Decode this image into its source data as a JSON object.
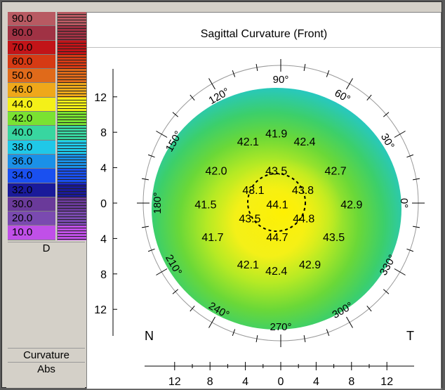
{
  "title": "Sagittal Curvature (Front)",
  "legend": {
    "scale": [
      {
        "label": "90.0",
        "color": "#b85a62"
      },
      {
        "label": "80.0",
        "color": "#a03244"
      },
      {
        "label": "70.0",
        "color": "#c21418"
      },
      {
        "label": "60.0",
        "color": "#d63a14"
      },
      {
        "label": "50.0",
        "color": "#e06a1a"
      },
      {
        "label": "46.0",
        "color": "#efa81a"
      },
      {
        "label": "44.0",
        "color": "#f4f018"
      },
      {
        "label": "42.0",
        "color": "#7ae232"
      },
      {
        "label": "40.0",
        "color": "#38d6a0"
      },
      {
        "label": "38.0",
        "color": "#20c8e8"
      },
      {
        "label": "36.0",
        "color": "#1a90e8"
      },
      {
        "label": "34.0",
        "color": "#1a50f0"
      },
      {
        "label": "32.0",
        "color": "#1a1a9a"
      },
      {
        "label": "30.0",
        "color": "#6a3a9a"
      },
      {
        "label": "20.0",
        "color": "#7a4ab0"
      },
      {
        "label": "10.0",
        "color": "#c050e8"
      }
    ],
    "unit": "D",
    "type": "Curvature",
    "mode": "Abs"
  },
  "axis": {
    "y_ticks": [
      "12",
      "8",
      "4",
      "0",
      "4",
      "8",
      "12"
    ],
    "x_ticks": [
      "12",
      "8",
      "4",
      "0",
      "4",
      "8",
      "12"
    ],
    "nasal": "N",
    "temporal": "T"
  },
  "angles": [
    {
      "label": "90°",
      "deg": 90
    },
    {
      "label": "60°",
      "deg": 60
    },
    {
      "label": "30°",
      "deg": 30
    },
    {
      "label": "0°",
      "deg": 0
    },
    {
      "label": "330°",
      "deg": 330
    },
    {
      "label": "300°",
      "deg": 300
    },
    {
      "label": "270°",
      "deg": 270
    },
    {
      "label": "240°",
      "deg": 240
    },
    {
      "label": "210°",
      "deg": 210
    },
    {
      "label": "180°",
      "deg": 180
    },
    {
      "label": "150°",
      "deg": 150
    },
    {
      "label": "120°",
      "deg": 120
    }
  ],
  "readings": [
    {
      "label": "41.9",
      "x": -0.5,
      "y": 7.9
    },
    {
      "label": "42.1",
      "x": -3.7,
      "y": 7.0
    },
    {
      "label": "42.4",
      "x": 2.7,
      "y": 7.0
    },
    {
      "label": "42.0",
      "x": -7.3,
      "y": 3.7
    },
    {
      "label": "43.5",
      "x": -0.5,
      "y": 3.7
    },
    {
      "label": "42.7",
      "x": 6.2,
      "y": 3.7
    },
    {
      "label": "43.1",
      "x": -3.1,
      "y": 1.5
    },
    {
      "label": "43.8",
      "x": 2.5,
      "y": 1.5
    },
    {
      "label": "41.5",
      "x": -8.5,
      "y": -0.1
    },
    {
      "label": "44.1",
      "x": -0.4,
      "y": -0.1
    },
    {
      "label": "42.9",
      "x": 8.0,
      "y": -0.1
    },
    {
      "label": "43.5",
      "x": -3.5,
      "y": -1.7
    },
    {
      "label": "44.8",
      "x": 2.6,
      "y": -1.7
    },
    {
      "label": "41.7",
      "x": -7.7,
      "y": -3.8
    },
    {
      "label": "44.7",
      "x": -0.4,
      "y": -3.8
    },
    {
      "label": "43.5",
      "x": 6.0,
      "y": -3.8
    },
    {
      "label": "42.1",
      "x": -3.7,
      "y": -6.9
    },
    {
      "label": "42.9",
      "x": 3.3,
      "y": -6.9
    },
    {
      "label": "42.4",
      "x": -0.5,
      "y": -7.6
    }
  ]
}
